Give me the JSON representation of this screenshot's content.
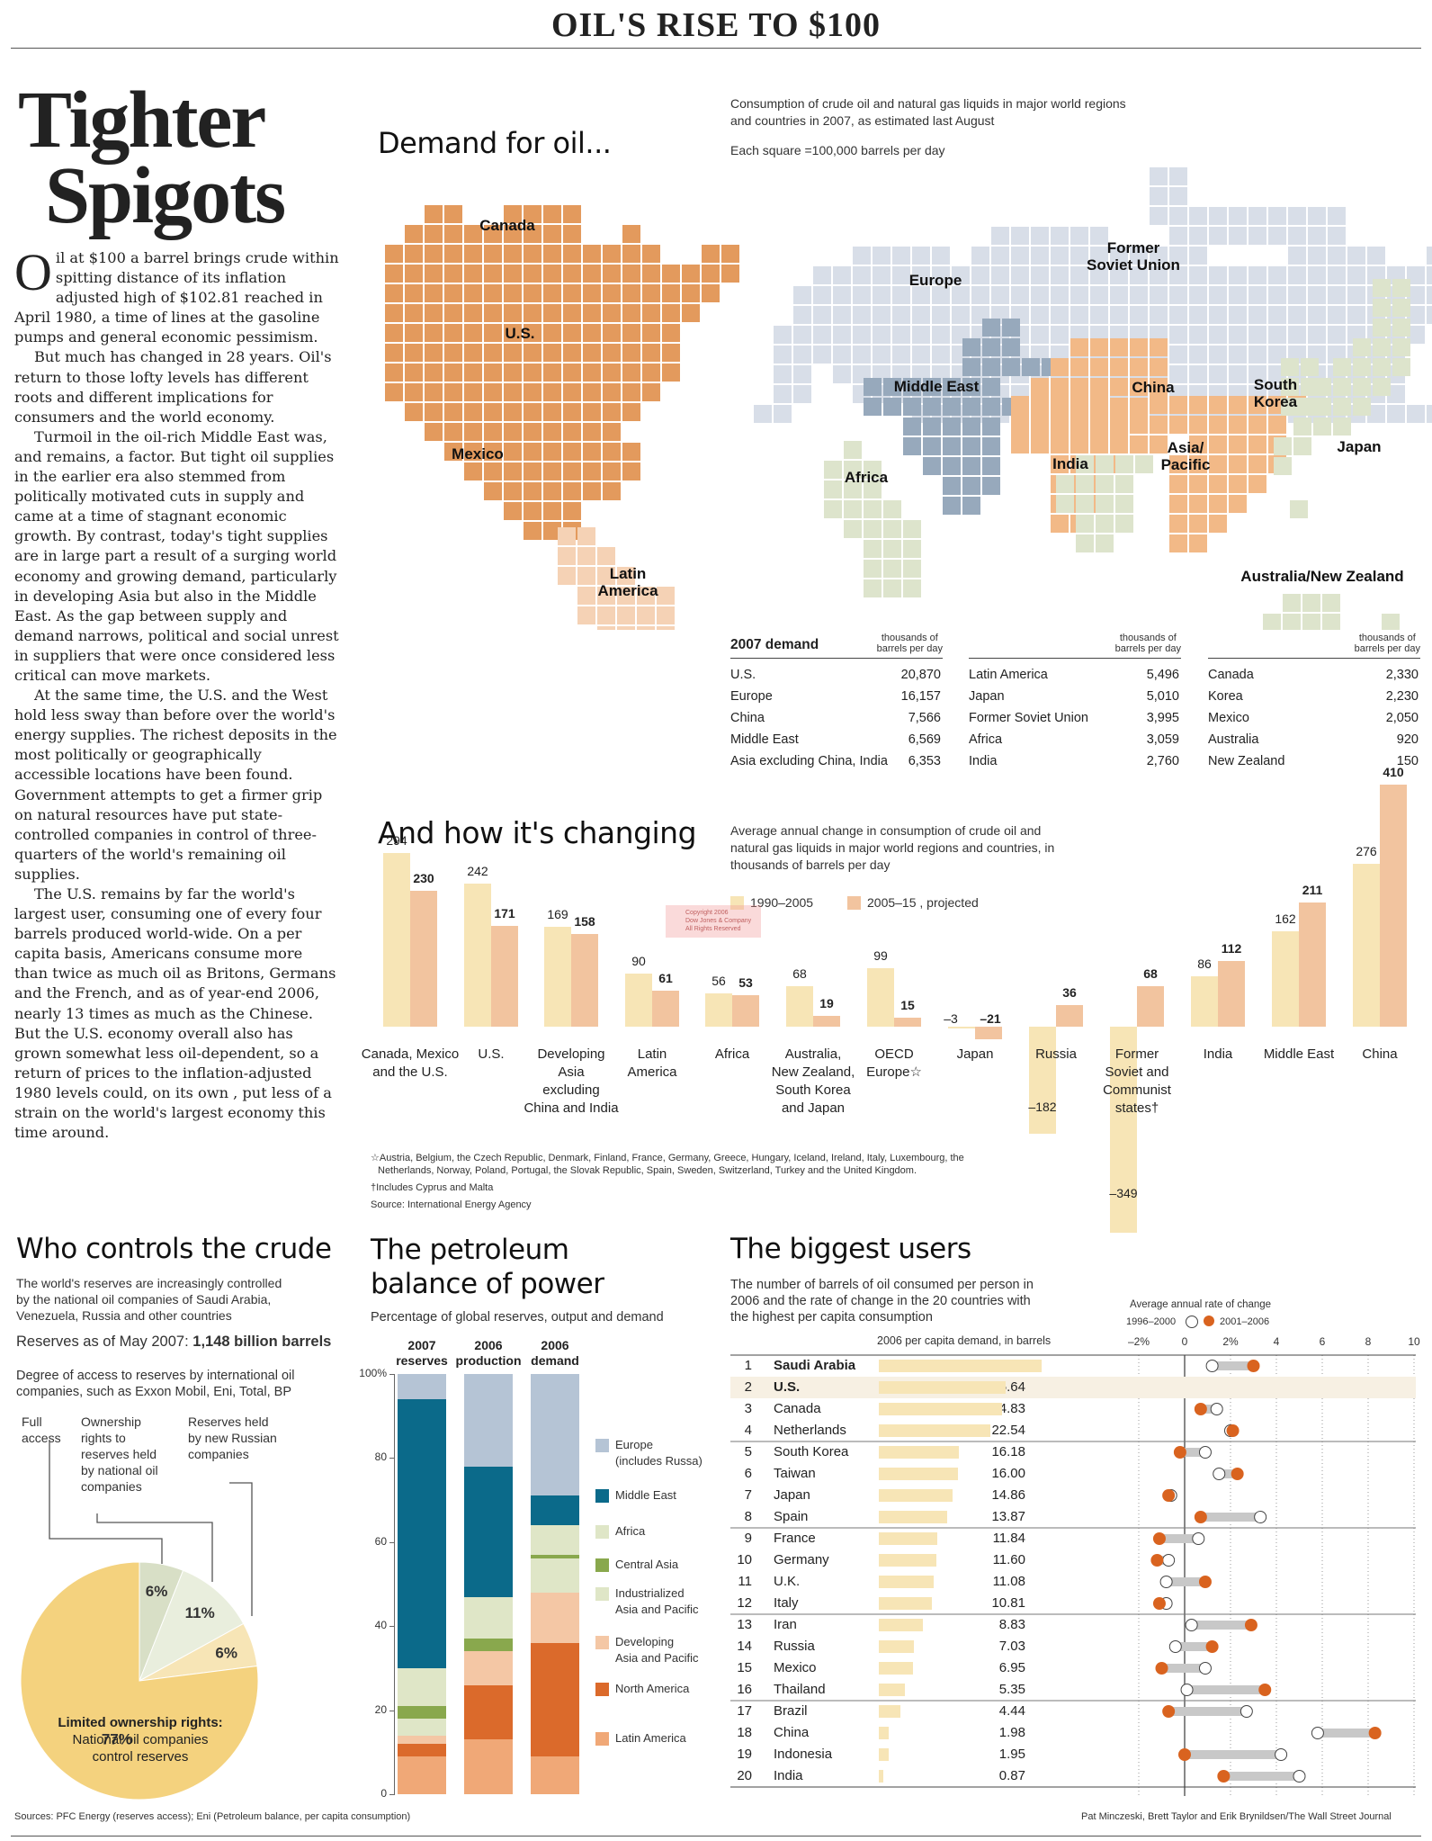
{
  "headline": "OIL'S RISE TO $100",
  "big_title": [
    "Tighter",
    "Spigots"
  ],
  "article": {
    "dropcap": "O",
    "p1": "il at $100 a barrel brings crude within spitting distance of its inflation adjusted high of $102.81 reached in April 1980, a time of lines at the gasoline pumps and general economic pessimism.",
    "p2": "But much has changed in 28 years. Oil's return to those lofty levels has different roots and different implications for consumers and the world economy.",
    "p3": "Turmoil in the oil-rich Middle East was, and remains, a factor. But tight oil supplies in the earlier era also stemmed from politically motivated cuts in supply and came at a time of stagnant economic growth. By contrast, today's tight supplies are in large part a result of a surging world economy and growing demand, particularly in developing Asia but also in the Middle East. As the gap between supply and demand narrows, political and social unrest in suppliers that were once considered less critical can move markets.",
    "p4": "At the same time, the U.S. and the West hold less sway than before over the world's energy supplies. The richest deposits in the most politically or geographically accessible locations have been found. Government attempts to get a firmer grip on natural resources have put state-controlled companies in control of three-quarters of the world's remaining oil supplies.",
    "p5": "The U.S. remains by far the world's largest user, consuming one of every four barrels produced world-wide. On a per capita basis, Americans consume more than twice as much oil as Britons, Germans and the French, and as of year-end 2006, nearly 13 times as much as the Chinese. But the U.S. economy overall also has grown somewhat less oil-dependent, so a return of prices to the inflation-adjusted 1980 levels could, on its own , put less of a strain on the world's largest economy this time around."
  },
  "demand": {
    "title": "Demand for oil...",
    "desc_1": "Consumption of crude oil and natural gas liquids in major world regions",
    "desc_2": "and countries in 2007, as estimated last August",
    "square_note": "Each square =100,000 barrels per day",
    "map_labels": {
      "canada": "Canada",
      "us": "U.S.",
      "mexico": "Mexico",
      "latin_1": "Latin",
      "latin_2": "America",
      "europe": "Europe",
      "fsu_1": "Former",
      "fsu_2": "Soviet Union",
      "middle_east": "Middle East",
      "africa": "Africa",
      "china": "China",
      "india": "India",
      "asia_1": "Asia/",
      "asia_2": "Pacific",
      "skorea_1": "South",
      "skorea_2": "Korea",
      "japan": "Japan",
      "anz": "Australia/New Zealand"
    },
    "table_title": "2007 demand",
    "unit_1": "thousands of",
    "unit_2": "barrels per day",
    "columns": [
      [
        [
          "U.S.",
          "20,870"
        ],
        [
          "Europe",
          "16,157"
        ],
        [
          "China",
          "7,566"
        ],
        [
          "Middle East",
          "6,569"
        ],
        [
          "Asia excluding China, India",
          "6,353"
        ]
      ],
      [
        [
          "Latin America",
          "5,496"
        ],
        [
          "Japan",
          "5,010"
        ],
        [
          "Former Soviet Union",
          "3,995"
        ],
        [
          "Africa",
          "3,059"
        ],
        [
          "India",
          "2,760"
        ]
      ],
      [
        [
          "Canada",
          "2,330"
        ],
        [
          "Korea",
          "2,230"
        ],
        [
          "Mexico",
          "2,050"
        ],
        [
          "Australia",
          "920"
        ],
        [
          "New Zealand",
          "150"
        ]
      ]
    ],
    "colors": {
      "america": "#e39a5d",
      "latin": "#f5d2b5",
      "europe": "#d8dee8",
      "middle_east": "#97a9bc",
      "asia": "#f2b987",
      "africa": "#dde4cc",
      "japan": "#dde4cc"
    }
  },
  "changing": {
    "title": "And how it's changing",
    "desc": [
      "Average annual change in consumption of crude oil and",
      "natural gas liquids in major world regions and countries, in",
      "thousands of barrels per day"
    ],
    "legend": [
      "1990–2005",
      "2005–15 , projected"
    ],
    "stamp": [
      "Copyright 2006",
      "Dow Jones & Company",
      "All Rights Reserved"
    ],
    "colors": {
      "past": "#f7e5b6",
      "proj": "#f2c49f"
    },
    "chart_data": {
      "type": "bar",
      "title": "And how it's changing",
      "ylabel": "thousands of barrels per day",
      "categories": [
        "Canada, Mexico and the U.S.",
        "U.S.",
        "Developing Asia excluding China and India",
        "Latin America",
        "Africa",
        "Australia, New Zealand, South Korea and Japan",
        "OECD Europe☆",
        "Japan",
        "Russia",
        "Former Soviet and Communist states†",
        "India",
        "Middle East",
        "China"
      ],
      "category_lines": [
        [
          "Canada, Mexico",
          "and the U.S."
        ],
        [
          "U.S."
        ],
        [
          "Developing",
          "Asia",
          "excluding",
          "China and India"
        ],
        [
          "Latin",
          "America"
        ],
        [
          "Africa"
        ],
        [
          "Australia,",
          "New Zealand,",
          "South Korea",
          "and Japan"
        ],
        [
          "OECD",
          "Europe☆"
        ],
        [
          "Japan"
        ],
        [
          "Russia"
        ],
        [
          "Former",
          "Soviet and",
          "Communist",
          "states†"
        ],
        [
          "India"
        ],
        [
          "Middle East"
        ],
        [
          "China"
        ]
      ],
      "series": [
        {
          "name": "1990–2005",
          "values": [
            294,
            242,
            169,
            90,
            56,
            68,
            99,
            -3,
            -182,
            -349,
            86,
            162,
            276
          ]
        },
        {
          "name": "2005–15 , projected",
          "values": [
            230,
            171,
            158,
            61,
            53,
            19,
            15,
            -21,
            36,
            68,
            112,
            211,
            410
          ]
        }
      ]
    },
    "footnote_1": "☆Austria, Belgium, the Czech Republic, Denmark, Finland, France, Germany, Greece, Hungary, Iceland, Ireland, Italy, Luxembourg, the",
    "footnote_2": "Netherlands, Norway, Poland, Portugal, the Slovak Republic, Spain, Sweden, Switzerland, Turkey and the United Kingdom.",
    "footnote_3": "†Includes Cyprus and Malta",
    "source": "Source: International Energy Agency"
  },
  "controls": {
    "title": "Who controls the crude",
    "desc_1": "The world's reserves are increasingly controlled",
    "desc_2": "by the national oil companies of Saudi Arabia,",
    "desc_3": "Venezuela, Russia and other countries",
    "reserves_label": "Reserves as of May 2007: ",
    "reserves_value": "1,148 billion barrels",
    "degree_1": "Degree of access to reserves by international oil",
    "degree_2": "companies, such as Exxon Mobil, Eni, Total, BP",
    "cat_full": [
      "Full",
      "access"
    ],
    "cat_own": [
      "Ownership",
      "rights to",
      "reserves held",
      "by national oil",
      "companies"
    ],
    "cat_russian": [
      "Reserves held",
      "by new Russian",
      "companies"
    ],
    "limited_1": "Limited ownership rights:",
    "limited_2": "National oil companies",
    "limited_3": "control reserves",
    "chart_data": {
      "type": "pie",
      "slices": [
        {
          "label": "Full access",
          "value": 6,
          "text": "6%",
          "color": "#d8dfc6"
        },
        {
          "label": "Ownership rights to reserves held by national oil companies",
          "value": 11,
          "text": "11%",
          "color": "#e9eedd"
        },
        {
          "label": "Reserves held by new Russian companies",
          "value": 6,
          "text": "6%",
          "color": "#f7e5b6"
        },
        {
          "label": "Limited ownership rights",
          "value": 77,
          "text": "77%",
          "color": "#f4d27e"
        }
      ]
    }
  },
  "balance": {
    "title_1": "The petroleum",
    "title_2": "balance of power",
    "desc": "Percentage of global reserves, output and demand",
    "chart_data": {
      "type": "bar",
      "stacked": true,
      "categories": [
        "2007 reserves",
        "2006 production",
        "2006 demand"
      ],
      "category_lines": [
        [
          "2007",
          "reserves"
        ],
        [
          "2006",
          "production"
        ],
        [
          "2006",
          "demand"
        ]
      ],
      "ylim": [
        0,
        100
      ],
      "yticks": [
        "0",
        "20",
        "40",
        "60",
        "80",
        "100%"
      ],
      "series": [
        {
          "name": "Latin America",
          "color": "#f0a877",
          "values": [
            9,
            13,
            9
          ]
        },
        {
          "name": "North America",
          "color": "#db6a2b",
          "values": [
            3,
            13,
            27
          ]
        },
        {
          "name": "Developing Asia and Pacific",
          "color": "#f4c7a5",
          "values": [
            2,
            8,
            12
          ]
        },
        {
          "name": "Industrialized Asia and Pacific",
          "color": "#dfe6c7",
          "values": [
            4,
            0,
            8
          ]
        },
        {
          "name": "Central Asia",
          "color": "#89a84d",
          "values": [
            3,
            3,
            1
          ]
        },
        {
          "name": "Africa",
          "color": "#dfe6c7",
          "values": [
            9,
            10,
            7
          ]
        },
        {
          "name": "Middle East",
          "color": "#0b6a8a",
          "values": [
            64,
            31,
            7
          ]
        },
        {
          "name": "Europe (includes Russa)",
          "color": "#b5c4d5",
          "values": [
            6,
            22,
            29
          ]
        }
      ]
    },
    "legend": [
      {
        "lines": [
          "Europe",
          "(includes Russa)"
        ],
        "color": "#b5c4d5"
      },
      {
        "lines": [
          "Middle East"
        ],
        "color": "#0b6a8a"
      },
      {
        "lines": [
          "Africa"
        ],
        "color": "#dfe6c7"
      },
      {
        "lines": [
          "Central Asia"
        ],
        "color": "#89a84d"
      },
      {
        "lines": [
          "Industrialized",
          "Asia and Pacific"
        ],
        "color": "#dfe6c7"
      },
      {
        "lines": [
          "Developing",
          "Asia and Pacific"
        ],
        "color": "#f4c7a5"
      },
      {
        "lines": [
          "North America"
        ],
        "color": "#db6a2b"
      },
      {
        "lines": [
          "Latin America"
        ],
        "color": "#f0a877"
      }
    ]
  },
  "users": {
    "title": "The biggest users",
    "desc": [
      "The number of barrels of oil consumed per person in",
      "2006 and the rate of change in the 20 countries with",
      "the highest per capita consumption"
    ],
    "col_header": "2006 per capita demand, in barrels",
    "rate_header": "Average annual rate of change",
    "legend": [
      "1996–2000",
      "2001–2006"
    ],
    "axis_ticks": [
      "–2%",
      "0",
      "2%",
      "4",
      "6",
      "8",
      "10"
    ],
    "axis_values": [
      -2,
      0,
      2,
      4,
      6,
      8,
      10
    ],
    "colors": {
      "bar": "#f7e5b6",
      "dot_new": "#d9631f",
      "highlight": "#f7f0e3"
    },
    "chart_data": {
      "type": "table",
      "rows": [
        {
          "rank": "1",
          "country": "Saudi Arabia",
          "value": "32.88",
          "v": 32.88,
          "old": 1.2,
          "new": 3.0,
          "bold": true
        },
        {
          "rank": "2",
          "country": "U.S.",
          "value": "25.64",
          "v": 25.64,
          "old": 1.0,
          "new": 0.3,
          "bold": true,
          "highlight": true
        },
        {
          "rank": "3",
          "country": "Canada",
          "value": "24.83",
          "v": 24.83,
          "old": 1.4,
          "new": 0.7
        },
        {
          "rank": "4",
          "country": "Netherlands",
          "value": "22.54",
          "v": 22.54,
          "old": 2.0,
          "new": 2.1
        },
        {
          "rank": "5",
          "country": "South Korea",
          "value": "16.18",
          "v": 16.18,
          "old": 0.9,
          "new": -0.2
        },
        {
          "rank": "6",
          "country": "Taiwan",
          "value": "16.00",
          "v": 16.0,
          "old": 1.5,
          "new": 2.3
        },
        {
          "rank": "7",
          "country": "Japan",
          "value": "14.86",
          "v": 14.86,
          "old": -0.6,
          "new": -0.7
        },
        {
          "rank": "8",
          "country": "Spain",
          "value": "13.87",
          "v": 13.87,
          "old": 3.3,
          "new": 0.7
        },
        {
          "rank": "9",
          "country": "France",
          "value": "11.84",
          "v": 11.84,
          "old": 0.6,
          "new": -1.1
        },
        {
          "rank": "10",
          "country": "Germany",
          "value": "11.60",
          "v": 11.6,
          "old": -0.7,
          "new": -1.2
        },
        {
          "rank": "11",
          "country": "U.K.",
          "value": "11.08",
          "v": 11.08,
          "old": -0.8,
          "new": 0.9
        },
        {
          "rank": "12",
          "country": "Italy",
          "value": "10.81",
          "v": 10.81,
          "old": -0.8,
          "new": -1.1
        },
        {
          "rank": "13",
          "country": "Iran",
          "value": "8.83",
          "v": 8.83,
          "old": 0.3,
          "new": 2.9
        },
        {
          "rank": "14",
          "country": "Russia",
          "value": "7.03",
          "v": 7.03,
          "old": -0.4,
          "new": 1.2
        },
        {
          "rank": "15",
          "country": "Mexico",
          "value": "6.95",
          "v": 6.95,
          "old": 0.9,
          "new": -1.0
        },
        {
          "rank": "16",
          "country": "Thailand",
          "value": "5.35",
          "v": 5.35,
          "old": 0.1,
          "new": 3.5
        },
        {
          "rank": "17",
          "country": "Brazil",
          "value": "4.44",
          "v": 4.44,
          "old": 2.7,
          "new": -0.7
        },
        {
          "rank": "18",
          "country": "China",
          "value": "1.98",
          "v": 1.98,
          "old": 5.8,
          "new": 8.3
        },
        {
          "rank": "19",
          "country": "Indonesia",
          "value": "1.95",
          "v": 1.95,
          "old": 4.2,
          "new": 0.0
        },
        {
          "rank": "20",
          "country": "India",
          "value": "0.87",
          "v": 0.87,
          "old": 5.0,
          "new": 1.7
        }
      ]
    }
  },
  "sources": "Sources: PFC Energy (reserves access); Eni (Petroleum balance, per capita consumption)",
  "credits": "Pat Minczeski, Brett Taylor and Erik Brynildsen/The Wall Street Journal"
}
